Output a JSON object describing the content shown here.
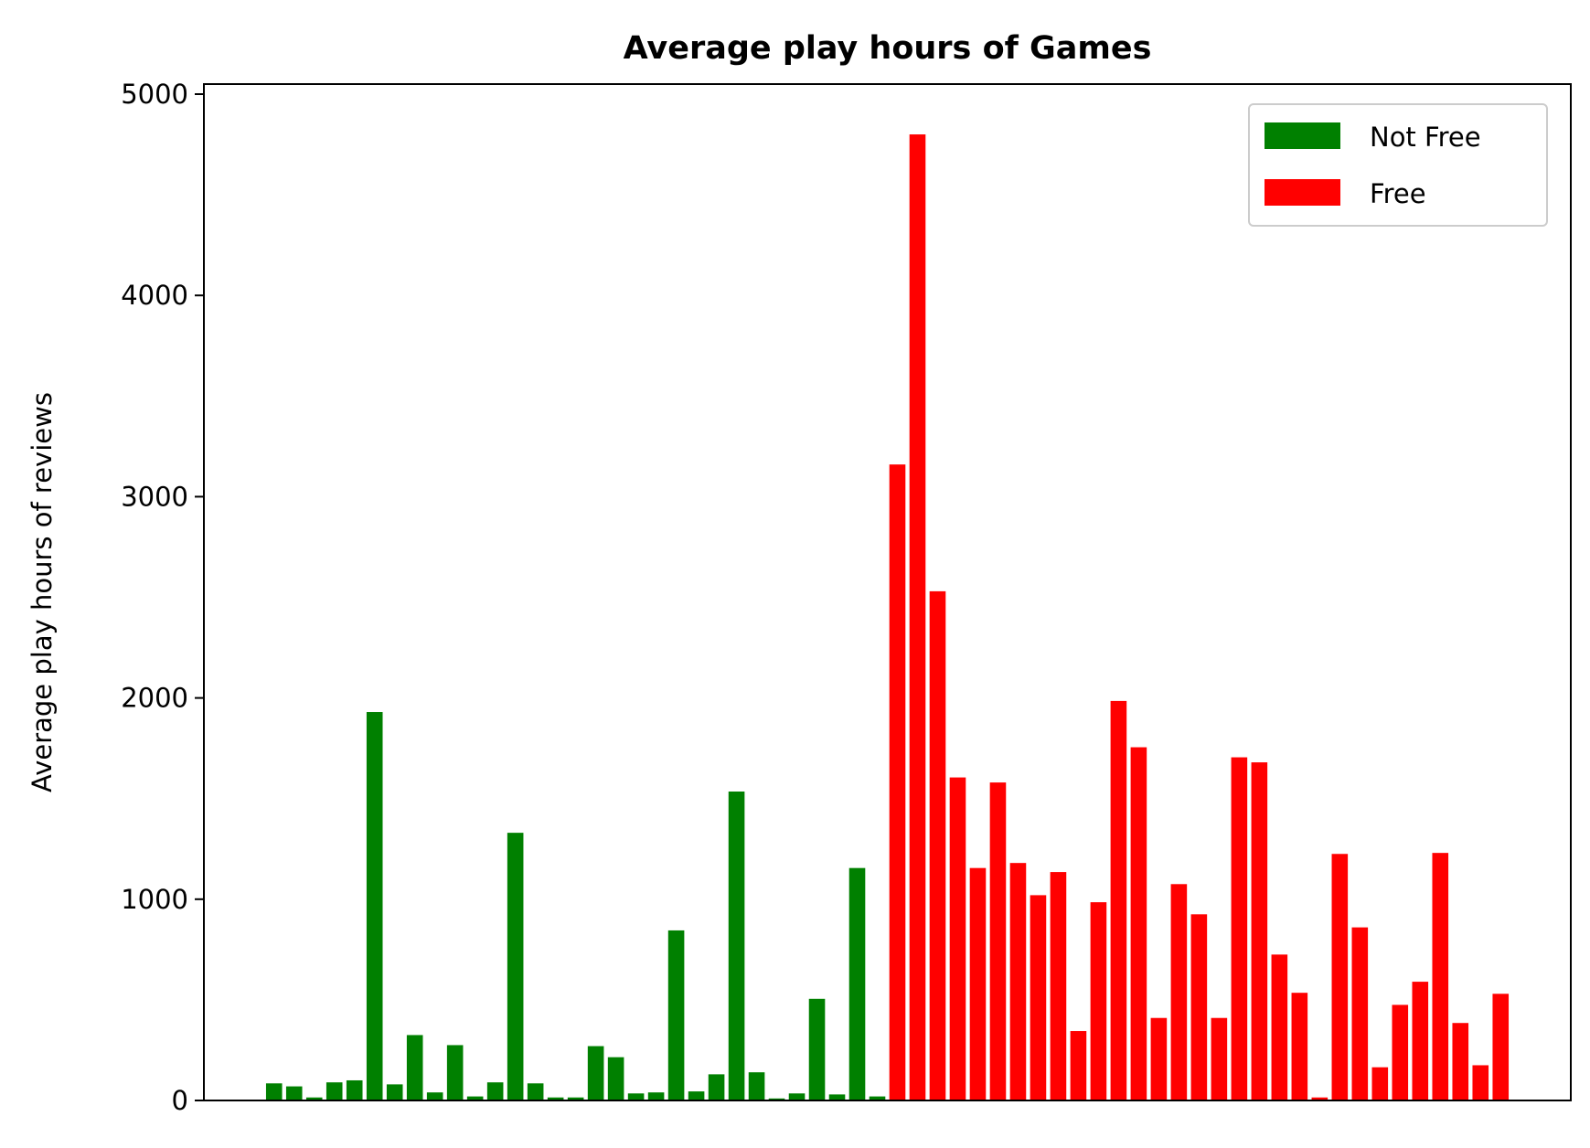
{
  "chart_data": {
    "type": "bar",
    "title": "Average play hours of Games",
    "xlabel": "",
    "ylabel": "Average play hours of reviews",
    "ylim": [
      0,
      5050
    ],
    "yticks": [
      0,
      1000,
      2000,
      3000,
      4000,
      5000
    ],
    "xticks_visible": false,
    "grid": false,
    "legend_position": "top-right",
    "series": [
      {
        "name": "Not Free",
        "color": "#008000",
        "values": [
          85,
          70,
          15,
          90,
          100,
          1930,
          80,
          325,
          40,
          275,
          20,
          90,
          1330,
          85,
          15,
          15,
          270,
          215,
          35,
          40,
          845,
          45,
          130,
          1535,
          140,
          10,
          35,
          505,
          30,
          1155,
          20
        ]
      },
      {
        "name": "Free",
        "color": "#ff0000",
        "values": [
          3160,
          4800,
          2530,
          1605,
          1155,
          1580,
          1180,
          1020,
          1135,
          345,
          985,
          1985,
          1755,
          410,
          1075,
          925,
          410,
          1705,
          1680,
          725,
          535,
          15,
          1225,
          860,
          165,
          475,
          590,
          1230,
          385,
          175,
          530
        ]
      }
    ]
  }
}
